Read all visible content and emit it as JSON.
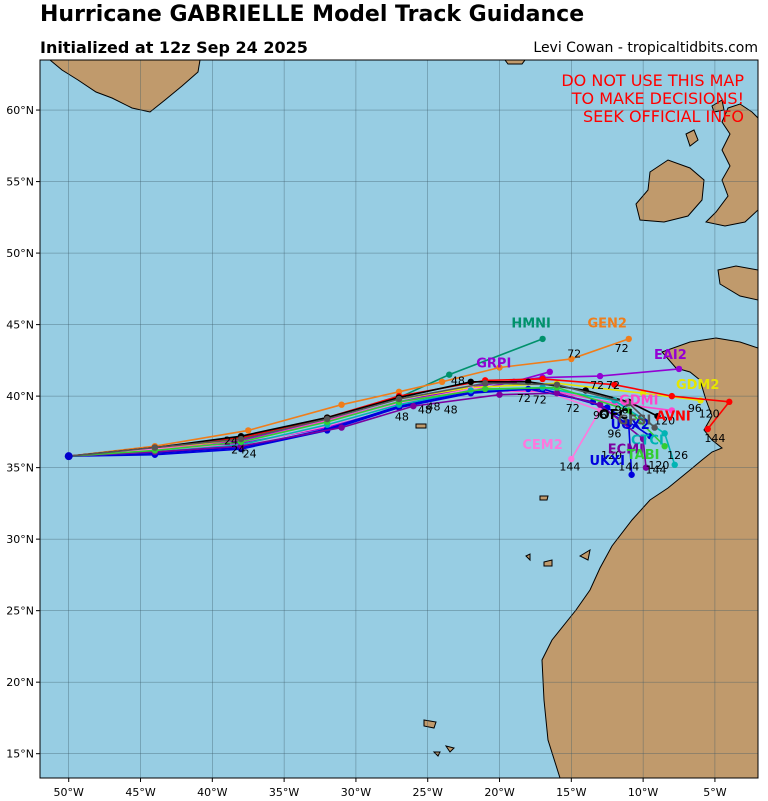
{
  "header": {
    "title": "Hurricane GABRIELLE Model Track Guidance",
    "subtitle": "Initialized at 12z Sep 24 2025",
    "credit": "Levi Cowan - tropicaltidbits.com"
  },
  "warning": [
    "DO NOT USE THIS MAP",
    "TO MAKE DECISIONS!",
    "SEEK OFFICIAL INFO"
  ],
  "colors": {
    "ocean": "#97cde3",
    "land": "#c09a6c",
    "border": "#000000",
    "warning": "#ff0000"
  },
  "axes": {
    "lon_range": [
      -52,
      -2
    ],
    "lat_range": [
      13.3,
      63.5
    ],
    "lon_ticks": [
      {
        "value": -50,
        "label": "50°W"
      },
      {
        "value": -45,
        "label": "45°W"
      },
      {
        "value": -40,
        "label": "40°W"
      },
      {
        "value": -35,
        "label": "35°W"
      },
      {
        "value": -30,
        "label": "30°W"
      },
      {
        "value": -25,
        "label": "25°W"
      },
      {
        "value": -20,
        "label": "20°W"
      },
      {
        "value": -15,
        "label": "15°W"
      },
      {
        "value": -10,
        "label": "10°W"
      },
      {
        "value": -5,
        "label": "5°W"
      }
    ],
    "lat_ticks": [
      {
        "value": 15,
        "label": "15°N"
      },
      {
        "value": 20,
        "label": "20°N"
      },
      {
        "value": 25,
        "label": "25°N"
      },
      {
        "value": 30,
        "label": "30°N"
      },
      {
        "value": 35,
        "label": "35°N"
      },
      {
        "value": 40,
        "label": "40°N"
      },
      {
        "value": 45,
        "label": "45°N"
      },
      {
        "value": 50,
        "label": "50°N"
      },
      {
        "value": 55,
        "label": "55°N"
      },
      {
        "value": 60,
        "label": "60°N"
      }
    ],
    "grid": true
  },
  "map_data": {
    "start": [
      -50,
      35.8
    ],
    "tracks": [
      {
        "name": "HMNI",
        "color": "#00916b",
        "points": [
          [
            -50,
            35.8
          ],
          [
            -44,
            36.2
          ],
          [
            -38,
            37.0
          ],
          [
            -32,
            38.4
          ],
          [
            -27,
            39.9
          ],
          [
            -23.5,
            41.5
          ],
          [
            -17,
            44.0
          ]
        ],
        "label_at": [
          -17.8,
          44.8
        ]
      },
      {
        "name": "GEN2",
        "color": "#f07d1a",
        "points": [
          [
            -50,
            35.8
          ],
          [
            -44,
            36.5
          ],
          [
            -37.5,
            37.6
          ],
          [
            -31,
            39.4
          ],
          [
            -27,
            40.3
          ],
          [
            -24,
            41.0
          ],
          [
            -20,
            42.0
          ],
          [
            -15,
            42.6
          ],
          [
            -11,
            44.0
          ]
        ],
        "label_at": [
          -12.5,
          44.8
        ]
      },
      {
        "name": "GRPI",
        "color": "#9400d3",
        "points": [
          [
            -50,
            35.8
          ],
          [
            -44,
            36.3
          ],
          [
            -38,
            36.7
          ],
          [
            -32,
            37.8
          ],
          [
            -27,
            39.2
          ],
          [
            -23,
            40.2
          ],
          [
            -19,
            41.0
          ],
          [
            -16.5,
            41.7
          ]
        ],
        "label_at": [
          -20.4,
          42.0
        ]
      },
      {
        "name": "EAI2",
        "color": "#9400d3",
        "points": [
          [
            -50,
            35.8
          ],
          [
            -44,
            36.2
          ],
          [
            -38,
            36.9
          ],
          [
            -32,
            38.3
          ],
          [
            -27,
            39.6
          ],
          [
            -21,
            40.8
          ],
          [
            -17,
            41.3
          ],
          [
            -13,
            41.4
          ],
          [
            -7.5,
            41.9
          ]
        ],
        "label_at": [
          -8.1,
          42.6
        ]
      },
      {
        "name": "GDM2",
        "color": "#e6e600",
        "points": [
          [
            -50,
            35.8
          ],
          [
            -44,
            36.3
          ],
          [
            -38,
            37.0
          ],
          [
            -32,
            38.5
          ],
          [
            -27,
            39.8
          ],
          [
            -22,
            40.6
          ],
          [
            -16,
            40.9
          ],
          [
            -10,
            40.2
          ],
          [
            -6,
            39.7
          ]
        ],
        "label_at": [
          -6.2,
          40.5
        ]
      },
      {
        "name": "GDMI",
        "color": "#ff44cc",
        "points": [
          [
            -50,
            35.8
          ],
          [
            -44,
            36.3
          ],
          [
            -38,
            36.8
          ],
          [
            -32,
            38.3
          ],
          [
            -27,
            39.6
          ],
          [
            -22,
            40.4
          ],
          [
            -16,
            40.3
          ],
          [
            -12,
            39.5
          ],
          [
            -8,
            39.0
          ]
        ],
        "label_at": [
          -10.3,
          39.4
        ]
      },
      {
        "name": "AVNI",
        "color": "#ff0000",
        "points": [
          [
            -50,
            35.8
          ],
          [
            -44,
            36.4
          ],
          [
            -38,
            37.1
          ],
          [
            -32,
            38.5
          ],
          [
            -27,
            40.0
          ],
          [
            -21,
            41.1
          ],
          [
            -17,
            41.2
          ],
          [
            -12,
            40.8
          ],
          [
            -8,
            40.0
          ],
          [
            -4,
            39.6
          ],
          [
            -5.5,
            37.7
          ]
        ],
        "label_at": [
          -7.9,
          38.3
        ]
      },
      {
        "name": "OFCI",
        "color": "#000000",
        "points": [
          [
            -50,
            35.8
          ],
          [
            -44,
            36.4
          ],
          [
            -38,
            37.2
          ],
          [
            -32,
            38.5
          ],
          [
            -27,
            39.9
          ],
          [
            -22,
            41.0
          ],
          [
            -18,
            41.0
          ],
          [
            -14,
            40.4
          ],
          [
            -11,
            39.6
          ],
          [
            -9,
            38.6
          ]
        ],
        "label_at": [
          -11.9,
          38.4
        ]
      },
      {
        "name": "CEM2",
        "color": "#ff77dd",
        "points": [
          [
            -50,
            35.8
          ],
          [
            -44,
            36.3
          ],
          [
            -38,
            36.6
          ],
          [
            -32,
            37.9
          ],
          [
            -27,
            39.5
          ],
          [
            -22,
            40.5
          ],
          [
            -17,
            40.4
          ],
          [
            -13,
            39.0
          ],
          [
            -15,
            35.6
          ]
        ],
        "label_at": [
          -17.0,
          36.3
        ]
      },
      {
        "name": "UKXI",
        "color": "#0000dd",
        "points": [
          [
            -50,
            35.8
          ],
          [
            -44,
            35.9
          ],
          [
            -38,
            36.3
          ],
          [
            -32,
            37.6
          ],
          [
            -27,
            39.2
          ],
          [
            -22,
            40.2
          ],
          [
            -18,
            40.5
          ],
          [
            -13.5,
            39.6
          ],
          [
            -11,
            38.0
          ],
          [
            -10.8,
            34.5
          ]
        ],
        "label_at": [
          -12.5,
          35.2
        ]
      },
      {
        "name": "UCX2",
        "color": "#0000dd",
        "points": [
          [
            -50,
            35.8
          ],
          [
            -44,
            36.0
          ],
          [
            -38,
            36.4
          ],
          [
            -32,
            37.7
          ],
          [
            -27,
            39.3
          ],
          [
            -22,
            40.3
          ],
          [
            -17,
            40.5
          ],
          [
            -12.5,
            39.2
          ],
          [
            -9.5,
            37.2
          ]
        ],
        "label_at": [
          -10.9,
          37.7
        ]
      },
      {
        "name": "CTCI",
        "color": "#00b4b4",
        "points": [
          [
            -50,
            35.8
          ],
          [
            -44,
            36.1
          ],
          [
            -38,
            36.6
          ],
          [
            -32,
            38.0
          ],
          [
            -27,
            39.4
          ],
          [
            -22,
            40.4
          ],
          [
            -17,
            40.6
          ],
          [
            -12,
            39.7
          ],
          [
            -8.5,
            37.4
          ],
          [
            -7.8,
            35.2
          ]
        ],
        "label_at": [
          -9.7,
          36.6
        ]
      },
      {
        "name": "ECMI",
        "color": "#7b00a0",
        "points": [
          [
            -50,
            35.8
          ],
          [
            -44,
            36.1
          ],
          [
            -38,
            36.5
          ],
          [
            -31,
            37.8
          ],
          [
            -26,
            39.3
          ],
          [
            -20,
            40.1
          ],
          [
            -16,
            40.2
          ],
          [
            -13,
            39.4
          ],
          [
            -10,
            37.0
          ],
          [
            -9.8,
            35.0
          ]
        ],
        "label_at": [
          -11.2,
          36.0
        ]
      },
      {
        "name": "TABI",
        "color": "#32cd32",
        "points": [
          [
            -50,
            35.8
          ],
          [
            -44,
            36.2
          ],
          [
            -38,
            36.8
          ],
          [
            -32,
            38.2
          ],
          [
            -27,
            39.6
          ],
          [
            -21,
            40.5
          ],
          [
            -16,
            40.6
          ],
          [
            -11,
            39.0
          ],
          [
            -8.5,
            36.5
          ]
        ],
        "label_at": [
          -10.0,
          35.6
        ]
      },
      {
        "name": "GFSI",
        "color": "#555555",
        "points": [
          [
            -50,
            35.8
          ],
          [
            -44,
            36.4
          ],
          [
            -38,
            37.0
          ],
          [
            -32,
            38.4
          ],
          [
            -27,
            39.8
          ],
          [
            -21,
            40.9
          ],
          [
            -16,
            40.8
          ],
          [
            -11,
            39.5
          ],
          [
            -9.2,
            37.8
          ]
        ],
        "label_at": [
          -10.6,
          38.0
        ]
      }
    ],
    "hour_labels": [
      {
        "text": "24",
        "pos": [
          -38.7,
          36.6
        ]
      },
      {
        "text": "24",
        "pos": [
          -38.2,
          36.0
        ]
      },
      {
        "text": "24",
        "pos": [
          -37.4,
          35.7
        ]
      },
      {
        "text": "48",
        "pos": [
          -26.8,
          38.3
        ]
      },
      {
        "text": "48",
        "pos": [
          -25.2,
          38.8
        ]
      },
      {
        "text": "48",
        "pos": [
          -24.6,
          39.0
        ]
      },
      {
        "text": "48",
        "pos": [
          -22.9,
          40.8
        ]
      },
      {
        "text": "48",
        "pos": [
          -23.4,
          38.8
        ]
      },
      {
        "text": "72",
        "pos": [
          -14.8,
          42.7
        ]
      },
      {
        "text": "72",
        "pos": [
          -11.5,
          43.1
        ]
      },
      {
        "text": "72",
        "pos": [
          -13.2,
          40.5
        ]
      },
      {
        "text": "72",
        "pos": [
          -12.1,
          40.5
        ]
      },
      {
        "text": "72",
        "pos": [
          -17.2,
          39.5
        ]
      },
      {
        "text": "72",
        "pos": [
          -18.3,
          39.6
        ]
      },
      {
        "text": "72",
        "pos": [
          -14.9,
          38.9
        ]
      },
      {
        "text": "96",
        "pos": [
          -11.5,
          38.8
        ]
      },
      {
        "text": "96",
        "pos": [
          -12.0,
          37.1
        ]
      },
      {
        "text": "96",
        "pos": [
          -6.4,
          38.9
        ]
      },
      {
        "text": "96",
        "pos": [
          -13.0,
          38.4
        ]
      },
      {
        "text": "120",
        "pos": [
          -5.4,
          38.5
        ]
      },
      {
        "text": "120",
        "pos": [
          -8.5,
          38.0
        ]
      },
      {
        "text": "120",
        "pos": [
          -12.2,
          35.6
        ]
      },
      {
        "text": "120",
        "pos": [
          -8.9,
          34.9
        ]
      },
      {
        "text": "144",
        "pos": [
          -5.0,
          36.8
        ]
      },
      {
        "text": "144",
        "pos": [
          -15.1,
          34.8
        ]
      },
      {
        "text": "144",
        "pos": [
          -11.0,
          34.8
        ]
      },
      {
        "text": "144",
        "pos": [
          -9.1,
          34.6
        ]
      },
      {
        "text": "126",
        "pos": [
          -7.6,
          35.6
        ]
      }
    ]
  }
}
